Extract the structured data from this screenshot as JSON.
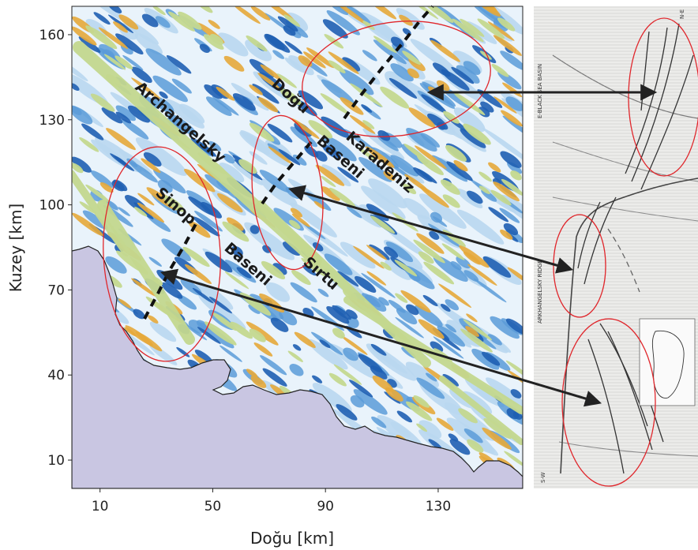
{
  "map": {
    "x_axis": {
      "title": "Doğu [km]",
      "range": [
        0,
        160
      ],
      "ticks": [
        10,
        50,
        90,
        130
      ]
    },
    "y_axis": {
      "title": "Kuzey [km]",
      "range": [
        0,
        170
      ],
      "ticks": [
        10,
        40,
        70,
        100,
        130,
        160
      ]
    },
    "labels": {
      "archangelsky": "Archangelsky",
      "sirtu": "Sırtu",
      "sinop": "Sinop",
      "baseni_sinop": "Baseni",
      "dogu": "Doğu",
      "karadeniz": "Karadeniz",
      "baseni_dogu": "Baseni"
    },
    "colors": {
      "land": "#c9c6e2",
      "deep_blue": "#1f5fb3",
      "mid_blue": "#5a9bd8",
      "light_blue": "#b9d7ef",
      "green": "#c4d88f",
      "orange": "#e6a93a",
      "ellipse": "#e0262b",
      "arrow": "#222222"
    }
  },
  "seismic": {
    "labels": {
      "basin": "E-BLACK SEA BASIN",
      "ridge": "ARKHANGELSKY RIDGE",
      "sw": "S-W",
      "ne": "N-E"
    }
  }
}
